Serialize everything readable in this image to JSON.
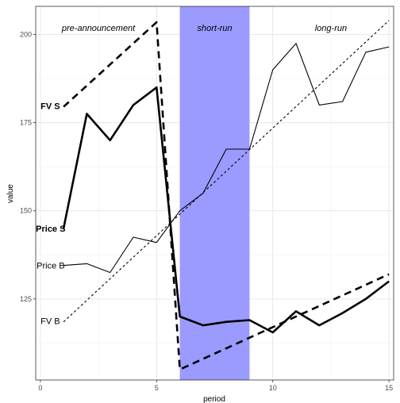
{
  "chart_data": {
    "type": "line",
    "xlabel": "period",
    "ylabel": "value",
    "xlim": [
      -0.2,
      15.2
    ],
    "ylim": [
      102,
      208
    ],
    "x_ticks": [
      0,
      5,
      10,
      15
    ],
    "y_ticks": [
      125,
      150,
      175,
      200
    ],
    "grid": true,
    "shaded_region": {
      "x_start": 6,
      "x_end": 9,
      "color": "#9a9aff"
    },
    "region_labels": [
      {
        "text": "pre-announcement",
        "x": 2.5
      },
      {
        "text": "short-run",
        "x": 7.5
      },
      {
        "text": "long-run",
        "x": 12.5
      }
    ],
    "series": [
      {
        "name": "Price S",
        "style": "solid-thick",
        "label_bold": true,
        "x": [
          1,
          2,
          3,
          4,
          5,
          6,
          7,
          8,
          9,
          10,
          11,
          12,
          13,
          14,
          15
        ],
        "y": [
          145,
          177.5,
          170,
          180,
          185,
          120,
          117.5,
          118.5,
          119,
          115.5,
          121.5,
          117.5,
          121,
          125,
          130
        ]
      },
      {
        "name": "FV S",
        "style": "dashed-thick",
        "label_bold": true,
        "x": [
          1,
          5,
          6,
          15
        ],
        "y": [
          179.5,
          203.5,
          105,
          132
        ]
      },
      {
        "name": "Price B",
        "style": "solid-thin",
        "label_bold": false,
        "x": [
          1,
          2,
          3,
          4,
          5,
          6,
          7,
          8,
          9,
          10,
          11,
          12,
          13,
          14,
          15
        ],
        "y": [
          134.5,
          135,
          132.5,
          142.5,
          141,
          150,
          155,
          167.5,
          167.5,
          190,
          197.5,
          180,
          181,
          195,
          196.5
        ]
      },
      {
        "name": "FV B",
        "style": "dotted-thin",
        "label_bold": false,
        "x": [
          1,
          15
        ],
        "y": [
          118.5,
          204
        ]
      }
    ]
  }
}
